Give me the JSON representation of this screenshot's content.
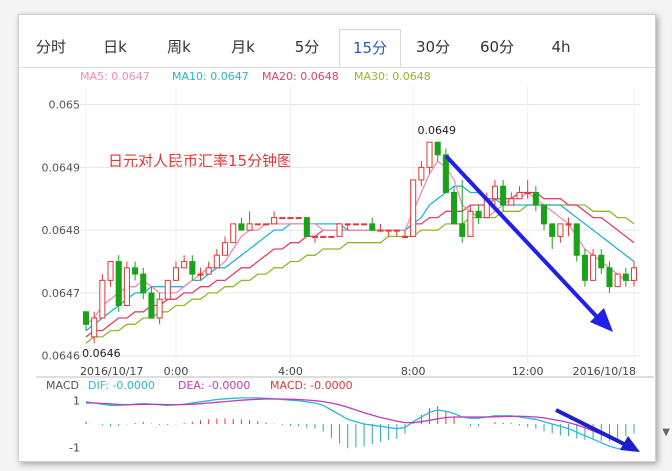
{
  "tabs": [
    "分时",
    "日k",
    "周k",
    "月k",
    "5分",
    "15分",
    "30分",
    "60分",
    "4h"
  ],
  "active_tab": 5,
  "legend": [
    {
      "label": "MA5: 0.0647",
      "color": "#f08cb4"
    },
    {
      "label": "MA10: 0.0647",
      "color": "#22b5d6"
    },
    {
      "label": "MA20: 0.0648",
      "color": "#e0406a"
    },
    {
      "label": "MA30: 0.0648",
      "color": "#93b72a"
    }
  ],
  "colors": {
    "up": "#e53535",
    "down": "#1aa31a",
    "arrow": "#2020e8",
    "macd": "#1c1cd2",
    "dif": "#2ab7d8",
    "dea": "#c23ab8"
  },
  "chart_data": {
    "type": "candlestick",
    "title": "日元对人民币汇率15分钟图",
    "ylim": [
      0.06459,
      0.06502
    ],
    "yticks": [
      "0.065",
      "0.0649",
      "0.0648",
      "0.0647",
      "0.0646"
    ],
    "ytick_values": [
      0.065,
      0.0649,
      0.0648,
      0.0647,
      0.0646
    ],
    "xticks": [
      {
        "index": 0,
        "label": "2016/10/17"
      },
      {
        "index": 11,
        "label": "0:00"
      },
      {
        "index": 25,
        "label": "4:00"
      },
      {
        "index": 40,
        "label": "8:00"
      },
      {
        "index": 54,
        "label": "12:00"
      },
      {
        "index": 67,
        "label": "2016/10/18"
      }
    ],
    "annotations": [
      {
        "index": 42,
        "price": 0.06494,
        "label": "0.0649",
        "position": "above"
      },
      {
        "index": 1,
        "price": 0.06463,
        "label": "0.0646",
        "position": "below"
      }
    ],
    "candles": [
      [
        0.06467,
        0.06465,
        0.06467,
        0.06464
      ],
      [
        0.06463,
        0.06466,
        0.06467,
        0.06462
      ],
      [
        0.06466,
        0.06472,
        0.06473,
        0.06466
      ],
      [
        0.06472,
        0.06475,
        0.06475,
        0.06471
      ],
      [
        0.06475,
        0.06468,
        0.06476,
        0.06467
      ],
      [
        0.06468,
        0.06474,
        0.06475,
        0.06468
      ],
      [
        0.06474,
        0.06473,
        0.06475,
        0.06472
      ],
      [
        0.06473,
        0.0647,
        0.06474,
        0.06469
      ],
      [
        0.0647,
        0.06466,
        0.06471,
        0.06466
      ],
      [
        0.06466,
        0.06469,
        0.0647,
        0.06465
      ],
      [
        0.06469,
        0.06472,
        0.06472,
        0.06469
      ],
      [
        0.06472,
        0.06474,
        0.06475,
        0.06472
      ],
      [
        0.06474,
        0.06475,
        0.06476,
        0.06474
      ],
      [
        0.06475,
        0.06473,
        0.06476,
        0.06472
      ],
      [
        0.06473,
        0.06473,
        0.06474,
        0.06472
      ],
      [
        0.06473,
        0.06474,
        0.06475,
        0.06473
      ],
      [
        0.06474,
        0.06476,
        0.06477,
        0.06474
      ],
      [
        0.06476,
        0.06478,
        0.06479,
        0.06476
      ],
      [
        0.06478,
        0.06481,
        0.06481,
        0.06478
      ],
      [
        0.06481,
        0.0648,
        0.06482,
        0.0648
      ],
      [
        0.0648,
        0.06481,
        0.06483,
        0.0648
      ],
      [
        0.06481,
        0.06481,
        0.06481,
        0.06481
      ],
      [
        0.06481,
        0.06481,
        0.06481,
        0.06481
      ],
      [
        0.06481,
        0.06482,
        0.06483,
        0.06481
      ],
      [
        0.06482,
        0.06482,
        0.06482,
        0.06482
      ],
      [
        0.06482,
        0.06482,
        0.06482,
        0.06482
      ],
      [
        0.06482,
        0.06482,
        0.06482,
        0.06482
      ],
      [
        0.06482,
        0.06479,
        0.06482,
        0.06479
      ],
      [
        0.06479,
        0.06479,
        0.06479,
        0.06478
      ],
      [
        0.06479,
        0.06479,
        0.06479,
        0.06479
      ],
      [
        0.06479,
        0.06479,
        0.06479,
        0.06479
      ],
      [
        0.06479,
        0.06481,
        0.06481,
        0.06479
      ],
      [
        0.06481,
        0.06481,
        0.06481,
        0.0648
      ],
      [
        0.06481,
        0.06481,
        0.06481,
        0.06481
      ],
      [
        0.06481,
        0.06481,
        0.06481,
        0.06481
      ],
      [
        0.06481,
        0.0648,
        0.06482,
        0.0648
      ],
      [
        0.0648,
        0.0648,
        0.06481,
        0.0648
      ],
      [
        0.0648,
        0.0648,
        0.0648,
        0.06479
      ],
      [
        0.0648,
        0.0648,
        0.0648,
        0.06479
      ],
      [
        0.06479,
        0.06479,
        0.0648,
        0.06479
      ],
      [
        0.06479,
        0.06488,
        0.06488,
        0.06479
      ],
      [
        0.06488,
        0.0649,
        0.06491,
        0.06487
      ],
      [
        0.0649,
        0.06494,
        0.06494,
        0.06489
      ],
      [
        0.06494,
        0.06492,
        0.06494,
        0.06491
      ],
      [
        0.06492,
        0.06486,
        0.06493,
        0.06486
      ],
      [
        0.06486,
        0.06481,
        0.06487,
        0.06481
      ],
      [
        0.06481,
        0.06479,
        0.06488,
        0.06478
      ],
      [
        0.06479,
        0.06483,
        0.06484,
        0.06479
      ],
      [
        0.06483,
        0.06482,
        0.06484,
        0.06481
      ],
      [
        0.06482,
        0.06485,
        0.06486,
        0.06482
      ],
      [
        0.06485,
        0.06487,
        0.06488,
        0.06484
      ],
      [
        0.06487,
        0.06484,
        0.06488,
        0.06483
      ],
      [
        0.06484,
        0.06485,
        0.06486,
        0.06484
      ],
      [
        0.06485,
        0.06486,
        0.06487,
        0.06485
      ],
      [
        0.06486,
        0.06486,
        0.06488,
        0.06485
      ],
      [
        0.06486,
        0.06484,
        0.06487,
        0.06483
      ],
      [
        0.06484,
        0.06481,
        0.06484,
        0.0648
      ],
      [
        0.06481,
        0.06479,
        0.06481,
        0.06477
      ],
      [
        0.06479,
        0.06481,
        0.06481,
        0.06478
      ],
      [
        0.06481,
        0.06481,
        0.06482,
        0.06479
      ],
      [
        0.06481,
        0.06476,
        0.06481,
        0.06475
      ],
      [
        0.06476,
        0.06472,
        0.06477,
        0.06471
      ],
      [
        0.06472,
        0.06476,
        0.06477,
        0.06472
      ],
      [
        0.06476,
        0.06474,
        0.06477,
        0.06473
      ],
      [
        0.06474,
        0.06471,
        0.06475,
        0.0647
      ],
      [
        0.06471,
        0.06473,
        0.06473,
        0.06471
      ],
      [
        0.06473,
        0.06472,
        0.06474,
        0.06471
      ],
      [
        0.06472,
        0.06474,
        0.06475,
        0.06471
      ]
    ],
    "ma5": [
      0.06465,
      0.06466,
      0.06468,
      0.06469,
      0.0647,
      0.06471,
      0.06471,
      0.06472,
      0.06471,
      0.0647,
      0.0647,
      0.0647,
      0.06471,
      0.06472,
      0.06473,
      0.06474,
      0.06474,
      0.06475,
      0.06477,
      0.06479,
      0.0648,
      0.0648,
      0.06481,
      0.06481,
      0.06481,
      0.06481,
      0.06481,
      0.06481,
      0.06481,
      0.0648,
      0.0648,
      0.0648,
      0.0648,
      0.0648,
      0.0648,
      0.0648,
      0.0648,
      0.0648,
      0.0648,
      0.0648,
      0.06483,
      0.06486,
      0.06489,
      0.06491,
      0.0649,
      0.06488,
      0.06484,
      0.06483,
      0.06482,
      0.06482,
      0.06483,
      0.06484,
      0.06485,
      0.06485,
      0.06486,
      0.06485,
      0.06484,
      0.06483,
      0.06482,
      0.06481,
      0.06479,
      0.06477,
      0.06476,
      0.06475,
      0.06474,
      0.06473,
      0.06472,
      0.06472
    ],
    "ma10": [
      0.06464,
      0.06465,
      0.06466,
      0.06467,
      0.06468,
      0.06469,
      0.0647,
      0.0647,
      0.06471,
      0.06471,
      0.06471,
      0.06471,
      0.06471,
      0.06472,
      0.06472,
      0.06473,
      0.06474,
      0.06474,
      0.06475,
      0.06476,
      0.06477,
      0.06478,
      0.06479,
      0.0648,
      0.0648,
      0.06481,
      0.06481,
      0.06481,
      0.06481,
      0.06481,
      0.06481,
      0.06481,
      0.0648,
      0.0648,
      0.0648,
      0.0648,
      0.0648,
      0.0648,
      0.0648,
      0.0648,
      0.06481,
      0.06482,
      0.06484,
      0.06485,
      0.06486,
      0.06487,
      0.06487,
      0.06486,
      0.06486,
      0.06485,
      0.06485,
      0.06484,
      0.06484,
      0.06484,
      0.06484,
      0.06484,
      0.06484,
      0.06484,
      0.06484,
      0.06483,
      0.06482,
      0.06481,
      0.0648,
      0.06479,
      0.06478,
      0.06477,
      0.06476,
      0.06475
    ],
    "ma20": [
      0.06463,
      0.06464,
      0.06464,
      0.06465,
      0.06466,
      0.06466,
      0.06467,
      0.06467,
      0.06468,
      0.06468,
      0.06469,
      0.06469,
      0.0647,
      0.0647,
      0.06471,
      0.06471,
      0.06472,
      0.06472,
      0.06473,
      0.06474,
      0.06474,
      0.06475,
      0.06476,
      0.06477,
      0.06477,
      0.06478,
      0.06478,
      0.06479,
      0.06479,
      0.0648,
      0.0648,
      0.0648,
      0.0648,
      0.0648,
      0.0648,
      0.0648,
      0.0648,
      0.0648,
      0.0648,
      0.0648,
      0.06481,
      0.06481,
      0.06482,
      0.06482,
      0.06483,
      0.06483,
      0.06483,
      0.06484,
      0.06484,
      0.06484,
      0.06485,
      0.06485,
      0.06485,
      0.06486,
      0.06486,
      0.06486,
      0.06485,
      0.06485,
      0.06485,
      0.06484,
      0.06484,
      0.06483,
      0.06482,
      0.06482,
      0.06481,
      0.0648,
      0.06479,
      0.06478
    ],
    "ma30": [
      0.06462,
      0.06463,
      0.06463,
      0.06464,
      0.06464,
      0.06465,
      0.06465,
      0.06466,
      0.06466,
      0.06467,
      0.06467,
      0.06468,
      0.06468,
      0.06469,
      0.06469,
      0.0647,
      0.0647,
      0.06471,
      0.06471,
      0.06472,
      0.06472,
      0.06473,
      0.06473,
      0.06474,
      0.06474,
      0.06475,
      0.06475,
      0.06476,
      0.06476,
      0.06477,
      0.06477,
      0.06477,
      0.06478,
      0.06478,
      0.06478,
      0.06478,
      0.06478,
      0.06479,
      0.06479,
      0.06479,
      0.06479,
      0.0648,
      0.0648,
      0.0648,
      0.06481,
      0.06481,
      0.06481,
      0.06482,
      0.06482,
      0.06482,
      0.06482,
      0.06483,
      0.06483,
      0.06483,
      0.06484,
      0.06484,
      0.06484,
      0.06484,
      0.06484,
      0.06484,
      0.06484,
      0.06484,
      0.06483,
      0.06483,
      0.06483,
      0.06482,
      0.06482,
      0.06481
    ],
    "macd_panel": {
      "labels": [
        {
          "text": "MACD",
          "color": "#555555"
        },
        {
          "text": "DIF: -0.0000",
          "color": "#2ab7d8"
        },
        {
          "text": "DEA: -0.0000",
          "color": "#c23ab8"
        },
        {
          "text": "MACD: -0.0000",
          "color": "#e53535"
        }
      ],
      "yticks": [
        "1",
        "-1"
      ],
      "ylim": [
        -1.2,
        1.2
      ],
      "dif": [
        0.95,
        0.9,
        0.85,
        0.8,
        0.8,
        0.82,
        0.85,
        0.88,
        0.85,
        0.82,
        0.8,
        0.82,
        0.85,
        0.9,
        0.95,
        1.0,
        1.05,
        1.08,
        1.1,
        1.12,
        1.12,
        1.12,
        1.1,
        1.08,
        1.05,
        1.02,
        1.0,
        0.95,
        0.9,
        0.8,
        0.6,
        0.4,
        0.2,
        0.1,
        0.0,
        -0.05,
        -0.1,
        -0.15,
        -0.2,
        -0.15,
        0.1,
        0.3,
        0.5,
        0.6,
        0.55,
        0.45,
        0.3,
        0.25,
        0.25,
        0.3,
        0.35,
        0.35,
        0.35,
        0.3,
        0.25,
        0.2,
        0.1,
        0.0,
        -0.1,
        -0.2,
        -0.35,
        -0.5,
        -0.65,
        -0.8,
        -0.95,
        -1.05,
        -1.1,
        -1.15
      ],
      "dea": [
        0.9,
        0.9,
        0.88,
        0.86,
        0.84,
        0.83,
        0.83,
        0.84,
        0.84,
        0.84,
        0.83,
        0.83,
        0.83,
        0.85,
        0.87,
        0.9,
        0.93,
        0.96,
        0.99,
        1.02,
        1.04,
        1.06,
        1.07,
        1.07,
        1.07,
        1.06,
        1.05,
        1.03,
        1.0,
        0.96,
        0.9,
        0.82,
        0.72,
        0.6,
        0.48,
        0.38,
        0.28,
        0.2,
        0.12,
        0.06,
        0.06,
        0.1,
        0.16,
        0.22,
        0.28,
        0.3,
        0.3,
        0.3,
        0.3,
        0.3,
        0.31,
        0.32,
        0.33,
        0.33,
        0.32,
        0.3,
        0.26,
        0.2,
        0.14,
        0.06,
        -0.04,
        -0.16,
        -0.3,
        -0.44,
        -0.58,
        -0.72,
        -0.84,
        -0.95
      ],
      "hist": [
        0.1,
        0.0,
        -0.06,
        -0.12,
        -0.08,
        -0.02,
        0.04,
        0.08,
        0.02,
        -0.04,
        -0.06,
        -0.02,
        0.04,
        0.1,
        0.16,
        0.2,
        0.24,
        0.24,
        0.22,
        0.2,
        0.16,
        0.12,
        0.06,
        0.02,
        -0.04,
        -0.08,
        -0.1,
        -0.16,
        -0.2,
        -0.32,
        -0.6,
        -0.84,
        -1.04,
        -1.0,
        -0.96,
        -0.86,
        -0.76,
        -0.7,
        -0.64,
        -0.42,
        0.08,
        0.4,
        0.68,
        0.76,
        0.54,
        0.3,
        0.0,
        -0.1,
        -0.1,
        0.0,
        0.08,
        0.06,
        0.04,
        -0.06,
        -0.14,
        -0.2,
        -0.32,
        -0.4,
        -0.48,
        -0.52,
        -0.62,
        -0.68,
        -0.7,
        -0.72,
        -0.74,
        -0.66,
        -0.52,
        -0.4
      ]
    }
  }
}
